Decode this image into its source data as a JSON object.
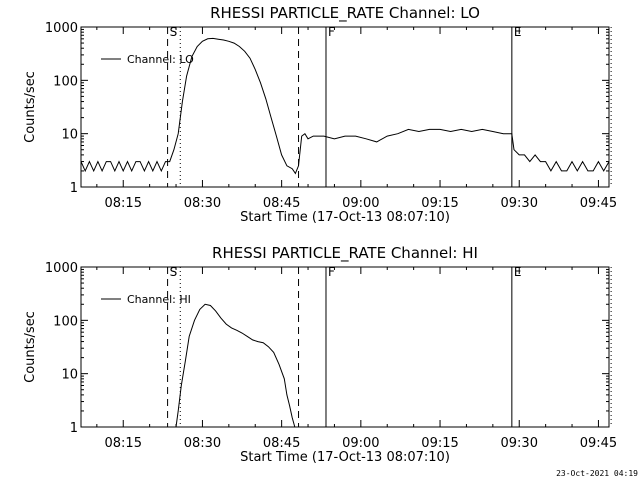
{
  "timestamp": "23-Oct-2021 04:19",
  "chart_data": [
    {
      "type": "line",
      "title": "RHESSI PARTICLE_RATE Channel: LO",
      "xlabel": "Start Time (17-Oct-13 08:07:10)",
      "ylabel": "Counts/sec",
      "yscale": "log",
      "ylim": [
        1,
        1000
      ],
      "xlim_minutes": [
        0,
        100
      ],
      "x_ticks": [
        {
          "t": 8,
          "label": "08:15"
        },
        {
          "t": 23,
          "label": "08:30"
        },
        {
          "t": 38,
          "label": "08:45"
        },
        {
          "t": 53,
          "label": "09:00"
        },
        {
          "t": 68,
          "label": "09:15"
        },
        {
          "t": 83,
          "label": "09:30"
        },
        {
          "t": 98,
          "label": "09:45"
        }
      ],
      "y_ticks": [
        {
          "v": 1,
          "label": "1"
        },
        {
          "v": 10,
          "label": "10"
        },
        {
          "v": 100,
          "label": "100"
        },
        {
          "v": 1000,
          "label": "1000"
        }
      ],
      "legend": "Channel: LO",
      "markers": [
        {
          "label": "S",
          "t": 16.4,
          "style": "dashed"
        },
        {
          "label": "",
          "t": 18.8,
          "style": "dotted"
        },
        {
          "label": "",
          "t": 41.2,
          "style": "dashed"
        },
        {
          "label": "F",
          "t": 46.4,
          "style": "solid"
        },
        {
          "label": "E",
          "t": 81.6,
          "style": "solid"
        },
        {
          "label": "",
          "t": 100.4,
          "style": "dotted"
        }
      ],
      "series": [
        {
          "name": "Channel: LO",
          "x": [
            0,
            0.8,
            1.6,
            2.4,
            3.2,
            4.0,
            4.8,
            5.6,
            6.4,
            7.2,
            8.0,
            8.8,
            9.6,
            10.4,
            11.2,
            12.0,
            12.8,
            13.6,
            14.4,
            15.2,
            16.0,
            16.8,
            17.6,
            18.4,
            19.2,
            20.0,
            21.0,
            22.0,
            23.0,
            24.0,
            25.0,
            26.0,
            27.0,
            28.0,
            29.0,
            30.0,
            31.0,
            32.0,
            33.0,
            34.0,
            35.0,
            36.0,
            37.0,
            38.0,
            39.0,
            40.0,
            40.6,
            41.2,
            41.8,
            42.4,
            43.0,
            44.0,
            45.0,
            46.0,
            48.0,
            50.0,
            52.0,
            54.0,
            56.0,
            58.0,
            60.0,
            62.0,
            64.0,
            66.0,
            68.0,
            70.0,
            72.0,
            74.0,
            76.0,
            78.0,
            80.0,
            81.6,
            82.0,
            83.0,
            84.0,
            85.0,
            86.0,
            87.0,
            88.0,
            89.0,
            90.0,
            91.0,
            92.0,
            93.0,
            94.0,
            95.0,
            96.0,
            97.0,
            98.0,
            99.0,
            100.0
          ],
          "values": [
            3,
            2,
            3,
            2,
            3,
            2,
            3,
            3,
            2,
            3,
            2,
            3,
            2,
            3,
            3,
            2,
            3,
            2,
            3,
            2,
            3,
            3,
            5,
            10,
            40,
            120,
            280,
            430,
            540,
            600,
            610,
            590,
            570,
            540,
            500,
            430,
            350,
            260,
            160,
            90,
            45,
            20,
            9,
            4,
            2.5,
            2.2,
            1.8,
            2.5,
            9,
            10,
            8,
            9,
            9,
            9,
            8,
            9,
            9,
            8,
            7,
            9,
            10,
            12,
            11,
            12,
            12,
            11,
            12,
            11,
            12,
            11,
            10,
            10,
            5,
            4,
            4,
            3,
            4,
            3,
            3,
            2,
            3,
            2,
            2,
            3,
            2,
            3,
            2,
            2,
            3,
            2,
            3
          ]
        }
      ]
    },
    {
      "type": "line",
      "title": "RHESSI PARTICLE_RATE Channel: HI",
      "xlabel": "Start Time (17-Oct-13 08:07:10)",
      "ylabel": "Counts/sec",
      "yscale": "log",
      "ylim": [
        1,
        1000
      ],
      "xlim_minutes": [
        0,
        100
      ],
      "x_ticks": [
        {
          "t": 8,
          "label": "08:15"
        },
        {
          "t": 23,
          "label": "08:30"
        },
        {
          "t": 38,
          "label": "08:45"
        },
        {
          "t": 53,
          "label": "09:00"
        },
        {
          "t": 68,
          "label": "09:15"
        },
        {
          "t": 83,
          "label": "09:30"
        },
        {
          "t": 98,
          "label": "09:45"
        }
      ],
      "y_ticks": [
        {
          "v": 1,
          "label": "1"
        },
        {
          "v": 10,
          "label": "10"
        },
        {
          "v": 100,
          "label": "100"
        },
        {
          "v": 1000,
          "label": "1000"
        }
      ],
      "legend": "Channel: HI",
      "markers": [
        {
          "label": "S",
          "t": 16.4,
          "style": "dashed"
        },
        {
          "label": "",
          "t": 18.8,
          "style": "dotted"
        },
        {
          "label": "",
          "t": 41.2,
          "style": "dashed"
        },
        {
          "label": "F",
          "t": 46.4,
          "style": "solid"
        },
        {
          "label": "E",
          "t": 81.6,
          "style": "solid"
        },
        {
          "label": "",
          "t": 100.4,
          "style": "dotted"
        }
      ],
      "series": [
        {
          "name": "Channel: HI",
          "x": [
            18.0,
            18.4,
            19.0,
            19.8,
            20.5,
            21.5,
            22.5,
            23.5,
            24.5,
            25.5,
            26.5,
            27.5,
            28.5,
            29.5,
            30.5,
            31.5,
            32.5,
            33.5,
            34.5,
            35.5,
            36.5,
            37.5,
            38.5,
            39.0,
            39.5,
            40.0,
            40.5
          ],
          "values": [
            1,
            2,
            6,
            18,
            50,
            100,
            160,
            200,
            190,
            150,
            110,
            85,
            72,
            65,
            58,
            50,
            43,
            40,
            38,
            32,
            25,
            15,
            8,
            4,
            2.5,
            1.5,
            1
          ]
        }
      ]
    }
  ]
}
